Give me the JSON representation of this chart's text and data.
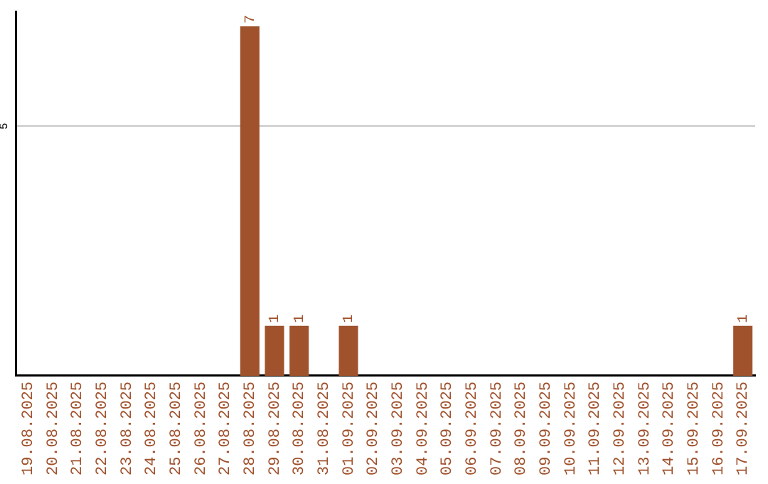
{
  "chart_data": {
    "type": "bar",
    "categories": [
      "19.08.2025",
      "20.08.2025",
      "21.08.2025",
      "22.08.2025",
      "23.08.2025",
      "24.08.2025",
      "25.08.2025",
      "26.08.2025",
      "27.08.2025",
      "28.08.2025",
      "29.08.2025",
      "30.08.2025",
      "31.08.2025",
      "01.09.2025",
      "02.09.2025",
      "03.09.2025",
      "04.09.2025",
      "05.09.2025",
      "06.09.2025",
      "07.09.2025",
      "08.09.2025",
      "09.09.2025",
      "10.09.2025",
      "11.09.2025",
      "12.09.2025",
      "13.09.2025",
      "14.09.2025",
      "15.09.2025",
      "16.09.2025",
      "17.09.2025"
    ],
    "values": [
      0,
      0,
      0,
      0,
      0,
      0,
      0,
      0,
      0,
      7,
      1,
      1,
      0,
      1,
      0,
      0,
      0,
      0,
      0,
      0,
      0,
      0,
      0,
      0,
      0,
      0,
      0,
      0,
      0,
      1
    ],
    "value_labels": [
      null,
      null,
      null,
      null,
      null,
      null,
      null,
      null,
      null,
      "7",
      "1",
      "1",
      null,
      "1",
      null,
      null,
      null,
      null,
      null,
      null,
      null,
      null,
      null,
      null,
      null,
      null,
      null,
      null,
      null,
      "1"
    ],
    "color": "#a0522d",
    "ylim": [
      0,
      7.3
    ],
    "yticks": [
      5
    ],
    "grid": "y",
    "legend": false
  }
}
